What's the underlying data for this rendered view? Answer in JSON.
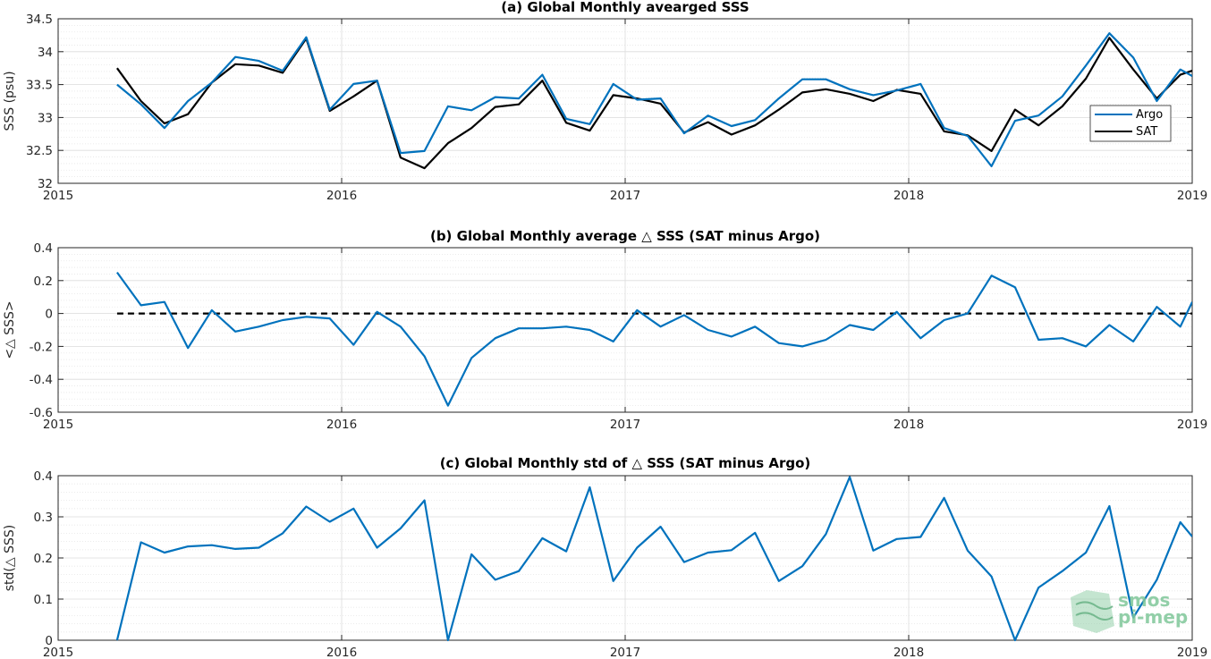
{
  "colors": {
    "argo": "#0072bd",
    "sat": "#000000",
    "grid": "#dcdcdc",
    "logo": "#7fc79a"
  },
  "watermark": {
    "line1": "smos",
    "line2": "pi-mep"
  },
  "chart_data": [
    {
      "type": "line",
      "title": "(a) Global Monthly avearged SSS",
      "ylabel": "SSS (psu)",
      "xlabel": "",
      "xlim": [
        2015,
        2019
      ],
      "ylim": [
        32,
        34.5
      ],
      "xticks": [
        "2015",
        "2016",
        "2017",
        "2018",
        "2019"
      ],
      "yticks": [
        "32",
        "32.5",
        "33",
        "33.5",
        "34",
        "34.5"
      ],
      "grid": true,
      "legend": "right",
      "x": [
        2015.208,
        2015.292,
        2015.375,
        2015.458,
        2015.542,
        2015.625,
        2015.708,
        2015.792,
        2015.875,
        2015.958,
        2016.042,
        2016.125,
        2016.208,
        2016.292,
        2016.375,
        2016.458,
        2016.542,
        2016.625,
        2016.708,
        2016.792,
        2016.875,
        2016.958,
        2017.042,
        2017.125,
        2017.208,
        2017.292,
        2017.375,
        2017.458,
        2017.542,
        2017.625,
        2017.708,
        2017.792,
        2017.875,
        2017.958,
        2018.042,
        2018.125,
        2018.208,
        2018.292,
        2018.375,
        2018.458,
        2018.542,
        2018.625,
        2018.708,
        2018.792,
        2018.875,
        2018.958,
        2019.0
      ],
      "series": [
        {
          "name": "Argo",
          "color": "#0072bd",
          "values": [
            33.5,
            33.2,
            32.84,
            33.25,
            33.53,
            33.92,
            33.86,
            33.71,
            34.22,
            33.12,
            33.51,
            33.56,
            32.46,
            32.49,
            33.17,
            33.11,
            33.31,
            33.29,
            33.65,
            32.98,
            32.9,
            33.51,
            33.27,
            33.29,
            32.76,
            33.03,
            32.87,
            32.96,
            33.29,
            33.58,
            33.58,
            33.43,
            33.34,
            33.41,
            33.51,
            32.84,
            32.72,
            32.26,
            32.95,
            33.03,
            33.32,
            33.79,
            34.28,
            33.91,
            33.25,
            33.73,
            33.63
          ]
        },
        {
          "name": "SAT",
          "color": "#000000",
          "values": [
            33.75,
            33.25,
            32.91,
            33.05,
            33.53,
            33.81,
            33.79,
            33.68,
            34.2,
            33.1,
            33.32,
            33.56,
            32.39,
            32.23,
            32.61,
            32.84,
            33.16,
            33.2,
            33.56,
            32.92,
            32.8,
            33.34,
            33.29,
            33.21,
            32.77,
            32.93,
            32.74,
            32.88,
            33.12,
            33.38,
            33.43,
            33.36,
            33.25,
            33.42,
            33.36,
            32.79,
            32.73,
            32.49,
            33.12,
            32.88,
            33.17,
            33.59,
            34.21,
            33.73,
            33.29,
            33.65,
            33.71
          ]
        }
      ]
    },
    {
      "type": "line",
      "title": "(b) Global Monthly average △ SSS (SAT minus Argo)",
      "ylabel": "<△ SSS>",
      "xlabel": "",
      "xlim": [
        2015,
        2019
      ],
      "ylim": [
        -0.6,
        0.4
      ],
      "xticks": [
        "2015",
        "2016",
        "2017",
        "2018",
        "2019"
      ],
      "yticks": [
        "-0.6",
        "-0.4",
        "-0.2",
        "0",
        "0.2",
        "0.4"
      ],
      "grid": true,
      "reference_line": 0,
      "x": [
        2015.208,
        2015.292,
        2015.375,
        2015.458,
        2015.542,
        2015.625,
        2015.708,
        2015.792,
        2015.875,
        2015.958,
        2016.042,
        2016.125,
        2016.208,
        2016.292,
        2016.375,
        2016.458,
        2016.542,
        2016.625,
        2016.708,
        2016.792,
        2016.875,
        2016.958,
        2017.042,
        2017.125,
        2017.208,
        2017.292,
        2017.375,
        2017.458,
        2017.542,
        2017.625,
        2017.708,
        2017.792,
        2017.875,
        2017.958,
        2018.042,
        2018.125,
        2018.208,
        2018.292,
        2018.375,
        2018.458,
        2018.542,
        2018.625,
        2018.708,
        2018.792,
        2018.875,
        2018.958,
        2019.0
      ],
      "series": [
        {
          "color": "#0072bd",
          "values": [
            0.25,
            0.05,
            0.07,
            -0.21,
            0.02,
            -0.11,
            -0.08,
            -0.04,
            -0.02,
            -0.03,
            -0.19,
            0.01,
            -0.08,
            -0.26,
            -0.56,
            -0.27,
            -0.15,
            -0.09,
            -0.09,
            -0.08,
            -0.1,
            -0.17,
            0.02,
            -0.08,
            -0.01,
            -0.1,
            -0.14,
            -0.08,
            -0.18,
            -0.2,
            -0.16,
            -0.07,
            -0.1,
            0.01,
            -0.15,
            -0.04,
            0.0,
            0.23,
            0.16,
            -0.16,
            -0.15,
            -0.2,
            -0.07,
            -0.17,
            0.04,
            -0.08,
            0.07
          ]
        }
      ]
    },
    {
      "type": "line",
      "title": "(c) Global Monthly std of △ SSS (SAT minus Argo)",
      "ylabel": "std(△ SSS)",
      "xlabel": "",
      "xlim": [
        2015,
        2019
      ],
      "ylim": [
        0,
        0.4
      ],
      "xticks": [
        "2015",
        "2016",
        "2017",
        "2018",
        "2019"
      ],
      "yticks": [
        "0",
        "0.1",
        "0.2",
        "0.3",
        "0.4"
      ],
      "grid": true,
      "x": [
        2015.208,
        2015.292,
        2015.375,
        2015.458,
        2015.542,
        2015.625,
        2015.708,
        2015.792,
        2015.875,
        2015.958,
        2016.042,
        2016.125,
        2016.208,
        2016.292,
        2016.375,
        2016.458,
        2016.542,
        2016.625,
        2016.708,
        2016.792,
        2016.875,
        2016.958,
        2017.042,
        2017.125,
        2017.208,
        2017.292,
        2017.375,
        2017.458,
        2017.542,
        2017.625,
        2017.708,
        2017.792,
        2017.875,
        2017.958,
        2018.042,
        2018.125,
        2018.208,
        2018.292,
        2018.375,
        2018.458,
        2018.542,
        2018.625,
        2018.708,
        2018.792,
        2018.875,
        2018.958,
        2019.0
      ],
      "series": [
        {
          "color": "#0072bd",
          "values": [
            0.0,
            0.238,
            0.213,
            0.228,
            0.231,
            0.222,
            0.225,
            0.26,
            0.325,
            0.288,
            0.32,
            0.225,
            0.272,
            0.34,
            0.0,
            0.209,
            0.147,
            0.168,
            0.248,
            0.216,
            0.372,
            0.144,
            0.225,
            0.276,
            0.19,
            0.213,
            0.219,
            0.261,
            0.144,
            0.18,
            0.258,
            0.397,
            0.218,
            0.246,
            0.251,
            0.346,
            0.218,
            0.155,
            0.0,
            0.128,
            0.168,
            0.213,
            0.326,
            0.055,
            0.147,
            0.287,
            0.252
          ]
        }
      ]
    }
  ]
}
